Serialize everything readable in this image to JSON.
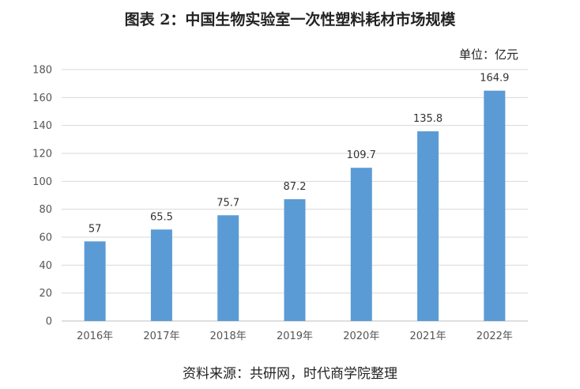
{
  "title": "图表 2：中国生物实验室一次性塑料耗材市场规模",
  "unit": "单位：亿元",
  "source": "资料来源：共研网，时代商学院整理",
  "colors": {
    "bar": "#5b9bd5",
    "grid": "#d9d9d9"
  },
  "chart_data": {
    "type": "bar",
    "categories": [
      "2016年",
      "2017年",
      "2018年",
      "2019年",
      "2020年",
      "2021年",
      "2022年"
    ],
    "values": [
      57,
      65.5,
      75.7,
      87.2,
      109.7,
      135.8,
      164.9
    ],
    "data_labels": [
      "57",
      "65.5",
      "75.7",
      "87.2",
      "109.7",
      "135.8",
      "164.9"
    ],
    "yticks": [
      0,
      20,
      40,
      60,
      80,
      100,
      120,
      140,
      160,
      180
    ],
    "ylim": [
      0,
      180
    ],
    "grid": true
  }
}
